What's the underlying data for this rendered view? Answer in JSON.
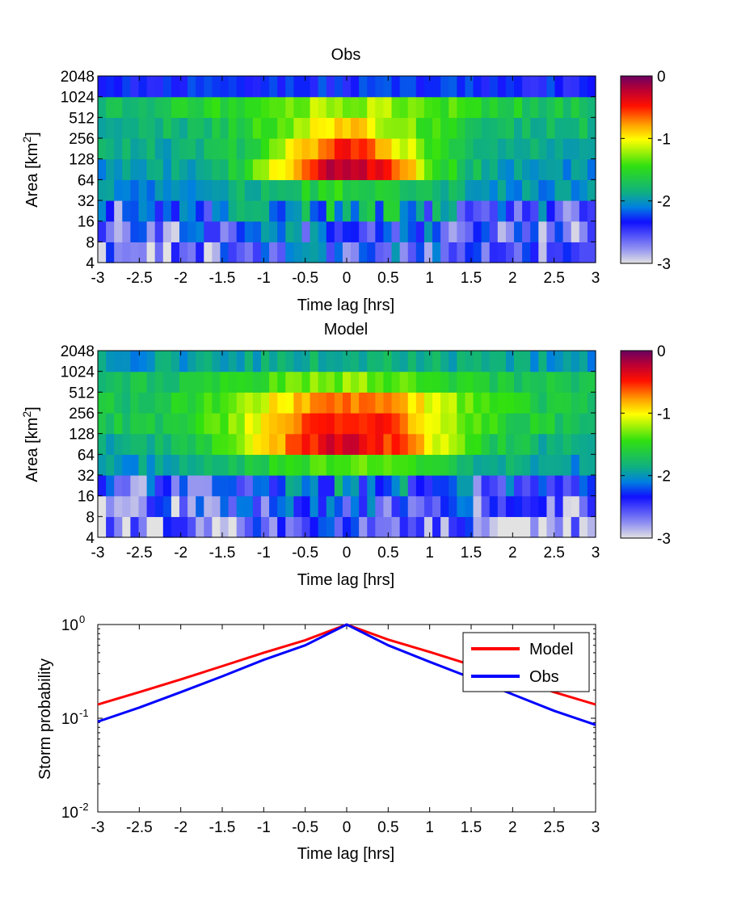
{
  "chart_data": [
    {
      "type": "heatmap",
      "title": "Obs",
      "xlabel": "Time lag [hrs]",
      "ylabel_main": "Area [km",
      "ylabel_sup": "2",
      "ylabel_end": "]",
      "xticks": [
        "-3",
        "-2.5",
        "-2",
        "-1.5",
        "-1",
        "-0.5",
        "0",
        "0.5",
        "1",
        "1.5",
        "2",
        "2.5",
        "3"
      ],
      "xlim": [
        -3,
        3
      ],
      "yticks": [
        "4",
        "8",
        "16",
        "32",
        "64",
        "128",
        "256",
        "512",
        "1024",
        "2048"
      ],
      "n_columns": 61,
      "peak_center": 0.0,
      "sigma_time_by_row": [
        1.3,
        1.4,
        1.2,
        0.9,
        0.75,
        0.7,
        0.75,
        1.15,
        1.8
      ],
      "peak_by_row": [
        -2.35,
        -2.25,
        -1.95,
        -1.55,
        -0.2,
        -0.55,
        -0.95,
        -1.2,
        -2.3
      ],
      "floor_by_row": [
        -2.75,
        -2.7,
        -2.5,
        -2.05,
        -2.0,
        -1.9,
        -1.8,
        -1.75,
        -2.35
      ],
      "colorbar": {
        "min": -3,
        "max": 0,
        "ticks": [
          "-3",
          "-2",
          "-1",
          "0"
        ]
      }
    },
    {
      "type": "heatmap",
      "title": "Model",
      "xlabel": "Time lag [hrs]",
      "ylabel_main": "Area [km",
      "ylabel_sup": "2",
      "ylabel_end": "]",
      "xticks": [
        "-3",
        "-2.5",
        "-2",
        "-1.5",
        "-1",
        "-0.5",
        "0",
        "0.5",
        "1",
        "1.5",
        "2",
        "2.5",
        "3"
      ],
      "xlim": [
        -3,
        3
      ],
      "yticks": [
        "4",
        "8",
        "16",
        "32",
        "64",
        "128",
        "256",
        "512",
        "1024",
        "2048"
      ],
      "n_columns": 61,
      "peak_center": 0.0,
      "sigma_time_by_row": [
        1.5,
        1.5,
        1.3,
        1.0,
        0.95,
        1.0,
        1.05,
        1.25,
        1.7
      ],
      "peak_by_row": [
        -2.6,
        -2.4,
        -2.15,
        -1.35,
        -0.3,
        -0.4,
        -0.7,
        -1.3,
        -1.85
      ],
      "floor_by_row": [
        -2.85,
        -2.8,
        -2.55,
        -2.0,
        -1.9,
        -1.75,
        -1.75,
        -1.8,
        -2.05
      ],
      "colorbar": {
        "min": -3,
        "max": 0,
        "ticks": [
          "-3",
          "-2",
          "-1",
          "0"
        ]
      }
    },
    {
      "type": "line",
      "title": "",
      "xlabel": "Time lag [hrs]",
      "ylabel": "Storm probability",
      "xlim": [
        -3,
        3
      ],
      "ylim": [
        0.01,
        1
      ],
      "yscale": "log",
      "xticks": [
        "-3",
        "-2.5",
        "-2",
        "-1.5",
        "-1",
        "-0.5",
        "0",
        "0.5",
        "1",
        "1.5",
        "2",
        "2.5",
        "3"
      ],
      "yticks": [
        {
          "base": "10",
          "exp": "0"
        },
        {
          "base": "10",
          "exp": "-1"
        },
        {
          "base": "10",
          "exp": "-2"
        }
      ],
      "legend": {
        "position": "top-right"
      },
      "series": [
        {
          "name": "Model",
          "color": "#ff0000",
          "x": [
            -3,
            -2.5,
            -2,
            -1.5,
            -1,
            -0.5,
            0,
            0.5,
            1,
            1.5,
            2,
            2.5,
            3
          ],
          "y": [
            0.14,
            0.19,
            0.26,
            0.36,
            0.5,
            0.68,
            1.0,
            0.69,
            0.51,
            0.37,
            0.27,
            0.19,
            0.14
          ]
        },
        {
          "name": "Obs",
          "color": "#0000ff",
          "x": [
            -3,
            -2.5,
            -2,
            -1.5,
            -1,
            -0.5,
            0,
            0.5,
            1,
            1.5,
            2,
            2.5,
            3
          ],
          "y": [
            0.092,
            0.13,
            0.19,
            0.28,
            0.42,
            0.6,
            1.0,
            0.6,
            0.4,
            0.27,
            0.18,
            0.12,
            0.085
          ]
        }
      ]
    }
  ]
}
